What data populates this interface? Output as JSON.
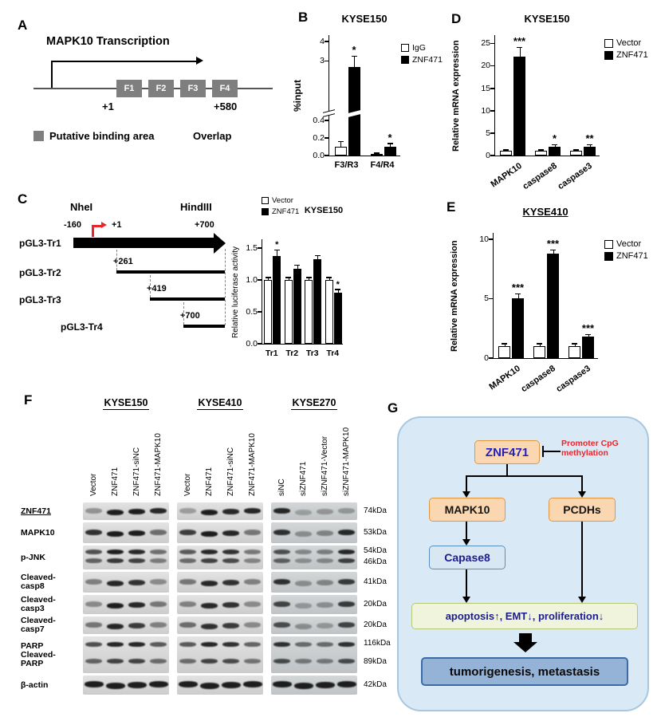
{
  "panel_labels": {
    "A": "A",
    "B": "B",
    "C": "C",
    "D": "D",
    "E": "E",
    "F": "F",
    "G": "G"
  },
  "panelA": {
    "title": "MAPK10 Transcription",
    "fragments": [
      "F1",
      "F2",
      "F3",
      "F4"
    ],
    "pos_start": "+1",
    "pos_end": "+580",
    "legend_square": "Putative binding area",
    "legend_overlap": "Overlap"
  },
  "panelC": {
    "enzyme_left": "NheI",
    "enzyme_right": "HindIII",
    "tss_left": "-160",
    "tss_plus1": "+1",
    "end_top": "+700",
    "constructs": [
      {
        "name": "pGL3-Tr1",
        "start": ""
      },
      {
        "name": "pGL3-Tr2",
        "start": "+261"
      },
      {
        "name": "pGL3-Tr3",
        "start": "+419"
      },
      {
        "name": "pGL3-Tr4",
        "start": "+700"
      }
    ]
  },
  "panelF": {
    "groups": [
      {
        "name": "KYSE150",
        "lanes": [
          "Vector",
          "ZNF471",
          "ZNF471-siNC",
          "ZNF471-MAPK10"
        ]
      },
      {
        "name": "KYSE410",
        "lanes": [
          "Vector",
          "ZNF471",
          "ZNF471-siNC",
          "ZNF471-MAPK10"
        ]
      },
      {
        "name": "KYSE270",
        "lanes": [
          "siNC",
          "siZNF471",
          "siZNF471-Vector",
          "siZNF471-MAPK10"
        ]
      }
    ],
    "rows": [
      {
        "lines": [
          "ZNF471"
        ],
        "underline": true,
        "kda": [
          "74kDa"
        ],
        "bands": 1,
        "intensity": [
          0.35,
          0.95,
          0.95,
          0.9,
          0.3,
          0.95,
          0.9,
          0.9,
          0.9,
          0.25,
          0.3,
          0.3
        ]
      },
      {
        "lines": [
          "MAPK10"
        ],
        "kda": [
          "53kDa"
        ],
        "bands": 1,
        "intensity": [
          0.85,
          0.95,
          0.95,
          0.55,
          0.8,
          0.95,
          0.9,
          0.5,
          0.85,
          0.35,
          0.4,
          0.9
        ]
      },
      {
        "lines": [
          "p-JNK"
        ],
        "kda": [
          "54kDa",
          "46kDa"
        ],
        "bands": 2,
        "intensity": [
          0.7,
          0.95,
          0.9,
          0.55,
          0.65,
          0.9,
          0.85,
          0.5,
          0.7,
          0.4,
          0.45,
          0.9
        ]
      },
      {
        "lines": [
          "Cleaved-",
          "casp8"
        ],
        "kda": [
          "41kDa"
        ],
        "bands": 1,
        "intensity": [
          0.45,
          0.9,
          0.85,
          0.4,
          0.5,
          0.9,
          0.85,
          0.45,
          0.85,
          0.35,
          0.4,
          0.8
        ]
      },
      {
        "lines": [
          "Cleaved-",
          "casp3"
        ],
        "kda": [
          "20kDa"
        ],
        "bands": 1,
        "intensity": [
          0.4,
          0.95,
          0.9,
          0.5,
          0.45,
          0.9,
          0.85,
          0.4,
          0.75,
          0.3,
          0.35,
          0.8
        ]
      },
      {
        "lines": [
          "Cleaved-",
          "casp7"
        ],
        "kda": [
          "20kDa"
        ],
        "bands": 1,
        "intensity": [
          0.5,
          0.9,
          0.8,
          0.45,
          0.55,
          0.85,
          0.8,
          0.4,
          0.7,
          0.35,
          0.3,
          0.75
        ]
      },
      {
        "lines": [
          "PARP",
          "Cleaved-",
          "PARP"
        ],
        "kda": [
          "116kDa",
          "89kDa"
        ],
        "bands": 2,
        "intensity": [
          0.7,
          0.9,
          0.9,
          0.65,
          0.65,
          0.9,
          0.85,
          0.6,
          0.85,
          0.55,
          0.55,
          0.85
        ]
      },
      {
        "lines": [
          "β-actin"
        ],
        "kda": [
          "42kDa"
        ],
        "bands": 1,
        "thick": true,
        "intensity": [
          0.95,
          0.95,
          0.95,
          0.95,
          0.95,
          0.95,
          0.95,
          0.95,
          0.95,
          0.95,
          0.95,
          0.95
        ]
      }
    ]
  },
  "panelG": {
    "znf471": "ZNF471",
    "methylation": [
      "Promoter CpG",
      "methylation"
    ],
    "mapk10": "MAPK10",
    "pcdhs": "PCDHs",
    "caspase8": "Capase8",
    "effects": "apoptosis↑, EMT↓, proliferation↓",
    "outcome": "tumorigenesis, metastasis"
  },
  "chart_data": [
    {
      "id": "B",
      "type": "bar",
      "title": "KYSE150",
      "title_underline": false,
      "ylabel": "%input",
      "categories": [
        "F3/R3",
        "F4/R4"
      ],
      "series": [
        {
          "name": "IgG",
          "fill": "#ffffff",
          "values": [
            0.1,
            0.01
          ],
          "errors": [
            0.05,
            0.01
          ],
          "sig": [
            "",
            ""
          ]
        },
        {
          "name": "ZNF471",
          "fill": "#000000",
          "values": [
            2.7,
            0.1
          ],
          "errors": [
            0.5,
            0.03
          ],
          "sig": [
            "*",
            "*"
          ]
        }
      ],
      "yticks": [
        {
          "v": 0,
          "label": "0.0"
        },
        {
          "v": 0.2,
          "label": "0.2"
        },
        {
          "v": 0.4,
          "label": "0.4"
        },
        {
          "v": 3,
          "label": "3"
        },
        {
          "v": 4,
          "label": "4"
        }
      ],
      "axis_break": true,
      "ylim": [
        0,
        4.35
      ],
      "legend_position": "right"
    },
    {
      "id": "C",
      "type": "bar",
      "title": "KYSE150",
      "title_underline": false,
      "ylabel": "Relative luciferase activity",
      "categories": [
        "Tr1",
        "Tr2",
        "Tr3",
        "Tr4"
      ],
      "series": [
        {
          "name": "Vector",
          "fill": "#ffffff",
          "values": [
            1.0,
            1.0,
            1.0,
            1.0
          ],
          "errors": [
            0.03,
            0.03,
            0.03,
            0.03
          ],
          "sig": [
            "",
            "",
            "",
            ""
          ]
        },
        {
          "name": "ZNF471",
          "fill": "#000000",
          "values": [
            1.38,
            1.18,
            1.32,
            0.8
          ],
          "errors": [
            0.08,
            0.04,
            0.05,
            0.04
          ],
          "sig": [
            "*",
            "",
            "",
            "*"
          ]
        }
      ],
      "yticks": [
        {
          "v": 0,
          "label": "0.0"
        },
        {
          "v": 0.5,
          "label": "0.5"
        },
        {
          "v": 1.0,
          "label": "1.0"
        },
        {
          "v": 1.5,
          "label": "1.5"
        }
      ],
      "ylim": [
        0,
        1.65
      ],
      "legend_position": "top-left"
    },
    {
      "id": "D",
      "type": "bar",
      "title": "KYSE150",
      "title_underline": false,
      "ylabel": "Relative mRNA expression",
      "categories": [
        "MAPK10",
        "caspase8",
        "caspase3"
      ],
      "series": [
        {
          "name": "Vector",
          "fill": "#ffffff",
          "values": [
            1,
            1,
            1
          ],
          "errors": [
            0.15,
            0.15,
            0.15
          ],
          "sig": [
            "",
            "",
            ""
          ]
        },
        {
          "name": "ZNF471",
          "fill": "#000000",
          "values": [
            22,
            2,
            2
          ],
          "errors": [
            2,
            0.3,
            0.3
          ],
          "sig": [
            "***",
            "*",
            "**"
          ]
        }
      ],
      "yticks": [
        {
          "v": 0,
          "label": "0"
        },
        {
          "v": 5,
          "label": "5"
        },
        {
          "v": 10,
          "label": "10"
        },
        {
          "v": 15,
          "label": "15"
        },
        {
          "v": 20,
          "label": "20"
        },
        {
          "v": 25,
          "label": "25"
        }
      ],
      "ylim": [
        0,
        27
      ],
      "legend_position": "right"
    },
    {
      "id": "E",
      "type": "bar",
      "title": "KYSE410",
      "title_underline": true,
      "ylabel": "Relative mRNA expression",
      "categories": [
        "MAPK10",
        "caspase8",
        "caspase3"
      ],
      "series": [
        {
          "name": "Vector",
          "fill": "#ffffff",
          "values": [
            1,
            1,
            1
          ],
          "errors": [
            0.15,
            0.15,
            0.15
          ],
          "sig": [
            "",
            "",
            ""
          ]
        },
        {
          "name": "ZNF471",
          "fill": "#000000",
          "values": [
            5,
            8.8,
            1.8
          ],
          "errors": [
            0.35,
            0.25,
            0.15
          ],
          "sig": [
            "***",
            "***",
            "***"
          ]
        }
      ],
      "yticks": [
        {
          "v": 0,
          "label": "0"
        },
        {
          "v": 5,
          "label": "5"
        },
        {
          "v": 10,
          "label": "10"
        }
      ],
      "ylim": [
        0,
        10.6
      ],
      "legend_position": "right"
    }
  ]
}
